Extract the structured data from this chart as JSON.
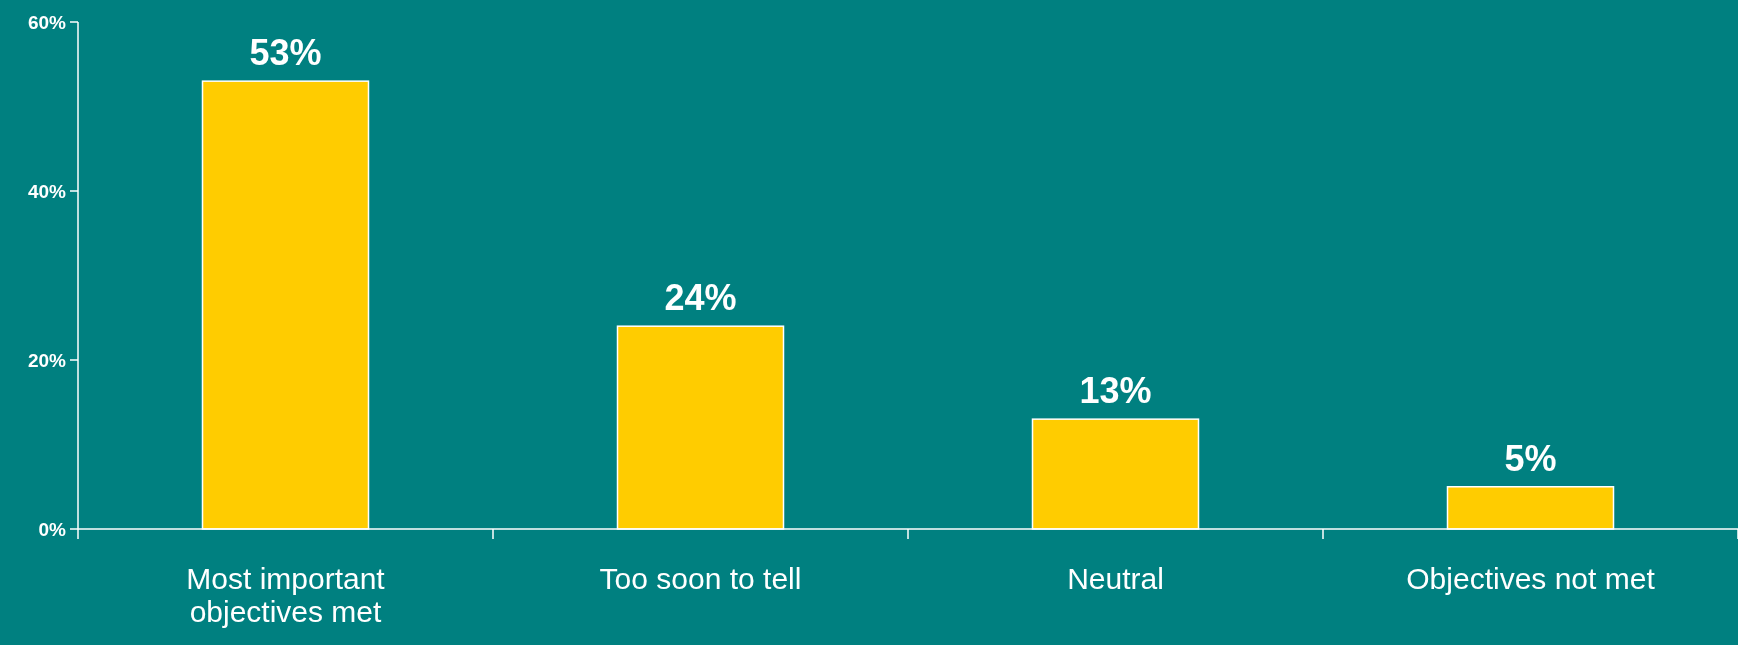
{
  "chart_data": {
    "type": "bar",
    "categories": [
      "Most important objectives met",
      "Too soon to tell",
      "Neutral",
      "Objectives not met"
    ],
    "values": [
      53,
      24,
      13,
      5
    ],
    "color": "#ffcc00",
    "value_labels": [
      "53%",
      "24%",
      "13%",
      "5%"
    ],
    "ylim": [
      0,
      60
    ],
    "yticks": [
      {
        "value": 0,
        "label": "0%"
      },
      {
        "value": 20,
        "label": "20%"
      },
      {
        "value": 40,
        "label": "40%"
      },
      {
        "value": 60,
        "label": "60%"
      }
    ],
    "grid": false
  }
}
